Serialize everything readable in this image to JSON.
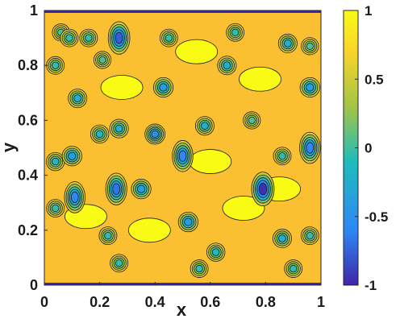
{
  "chart_data": {
    "type": "heatmap",
    "subtype": "filled contour",
    "title": "",
    "xlabel": "x",
    "ylabel": "y",
    "xlim": [
      0,
      1
    ],
    "ylim": [
      0,
      1
    ],
    "xticks": [
      "0",
      "0.2",
      "0.4",
      "0.6",
      "0.8",
      "1"
    ],
    "yticks": [
      "0",
      "0.2",
      "0.4",
      "0.6",
      "0.8",
      "1"
    ],
    "colorbar": {
      "range": [
        -1,
        1
      ],
      "ticks": [
        "-1",
        "-0.5",
        "0",
        "0.5",
        "1"
      ],
      "colormap": "parula",
      "colors": [
        "#3e26a8",
        "#2e87f7",
        "#1fbcbc",
        "#a3c545",
        "#f9d42b",
        "#f9fb15"
      ]
    },
    "background_level": 0.85,
    "contour_lines": "black",
    "boundary_value": -1,
    "features": [
      {
        "kind": "well",
        "x": 0.04,
        "y": 0.8,
        "depth": 0.5
      },
      {
        "kind": "well",
        "x": 0.04,
        "y": 0.45,
        "depth": 0.55
      },
      {
        "kind": "well",
        "x": 0.04,
        "y": 0.28,
        "depth": 0.5
      },
      {
        "kind": "well",
        "x": 0.06,
        "y": 0.92,
        "depth": 0.45
      },
      {
        "kind": "well",
        "x": 0.09,
        "y": 0.9,
        "depth": 0.5
      },
      {
        "kind": "well",
        "x": 0.12,
        "y": 0.68,
        "depth": 0.6
      },
      {
        "kind": "well",
        "x": 0.1,
        "y": 0.47,
        "depth": 0.7
      },
      {
        "kind": "well",
        "x": 0.11,
        "y": 0.32,
        "depth": 0.8
      },
      {
        "kind": "well",
        "x": 0.16,
        "y": 0.9,
        "depth": 0.5
      },
      {
        "kind": "well",
        "x": 0.2,
        "y": 0.55,
        "depth": 0.55
      },
      {
        "kind": "well",
        "x": 0.21,
        "y": 0.82,
        "depth": 0.45
      },
      {
        "kind": "well",
        "x": 0.23,
        "y": 0.18,
        "depth": 0.5
      },
      {
        "kind": "well",
        "x": 0.27,
        "y": 0.9,
        "depth": 0.9
      },
      {
        "kind": "well",
        "x": 0.26,
        "y": 0.35,
        "depth": 0.85
      },
      {
        "kind": "well",
        "x": 0.27,
        "y": 0.08,
        "depth": 0.5
      },
      {
        "kind": "well",
        "x": 0.27,
        "y": 0.57,
        "depth": 0.6
      },
      {
        "kind": "well",
        "x": 0.35,
        "y": 0.35,
        "depth": 0.7
      },
      {
        "kind": "well",
        "x": 0.4,
        "y": 0.55,
        "depth": 0.75
      },
      {
        "kind": "well",
        "x": 0.43,
        "y": 0.72,
        "depth": 0.7
      },
      {
        "kind": "well",
        "x": 0.45,
        "y": 0.9,
        "depth": 0.5
      },
      {
        "kind": "well",
        "x": 0.5,
        "y": 0.47,
        "depth": 0.8
      },
      {
        "kind": "well",
        "x": 0.52,
        "y": 0.23,
        "depth": 0.7
      },
      {
        "kind": "well",
        "x": 0.56,
        "y": 0.06,
        "depth": 0.5
      },
      {
        "kind": "well",
        "x": 0.58,
        "y": 0.58,
        "depth": 0.6
      },
      {
        "kind": "well",
        "x": 0.62,
        "y": 0.12,
        "depth": 0.55
      },
      {
        "kind": "well",
        "x": 0.66,
        "y": 0.8,
        "depth": 0.6
      },
      {
        "kind": "well",
        "x": 0.69,
        "y": 0.92,
        "depth": 0.5
      },
      {
        "kind": "well",
        "x": 0.75,
        "y": 0.6,
        "depth": 0.45
      },
      {
        "kind": "well",
        "x": 0.79,
        "y": 0.35,
        "depth": 1.0
      },
      {
        "kind": "well",
        "x": 0.86,
        "y": 0.17,
        "depth": 0.6
      },
      {
        "kind": "well",
        "x": 0.86,
        "y": 0.47,
        "depth": 0.5
      },
      {
        "kind": "well",
        "x": 0.88,
        "y": 0.88,
        "depth": 0.6
      },
      {
        "kind": "well",
        "x": 0.9,
        "y": 0.06,
        "depth": 0.5
      },
      {
        "kind": "well",
        "x": 0.96,
        "y": 0.72,
        "depth": 0.7
      },
      {
        "kind": "well",
        "x": 0.96,
        "y": 0.5,
        "depth": 0.8
      },
      {
        "kind": "well",
        "x": 0.96,
        "y": 0.87,
        "depth": 0.45
      },
      {
        "kind": "well",
        "x": 0.96,
        "y": 0.18,
        "depth": 0.5
      },
      {
        "kind": "ridge",
        "x": 0.28,
        "y": 0.72,
        "height": 0.3
      },
      {
        "kind": "ridge",
        "x": 0.6,
        "y": 0.45,
        "height": 0.3
      },
      {
        "kind": "ridge",
        "x": 0.72,
        "y": 0.28,
        "height": 0.3
      },
      {
        "kind": "ridge",
        "x": 0.38,
        "y": 0.2,
        "height": 0.25
      },
      {
        "kind": "ridge",
        "x": 0.78,
        "y": 0.75,
        "height": 0.28
      },
      {
        "kind": "ridge",
        "x": 0.15,
        "y": 0.25,
        "height": 0.25
      },
      {
        "kind": "ridge",
        "x": 0.55,
        "y": 0.85,
        "height": 0.3
      },
      {
        "kind": "ridge",
        "x": 0.85,
        "y": 0.35,
        "height": 0.25
      }
    ]
  }
}
